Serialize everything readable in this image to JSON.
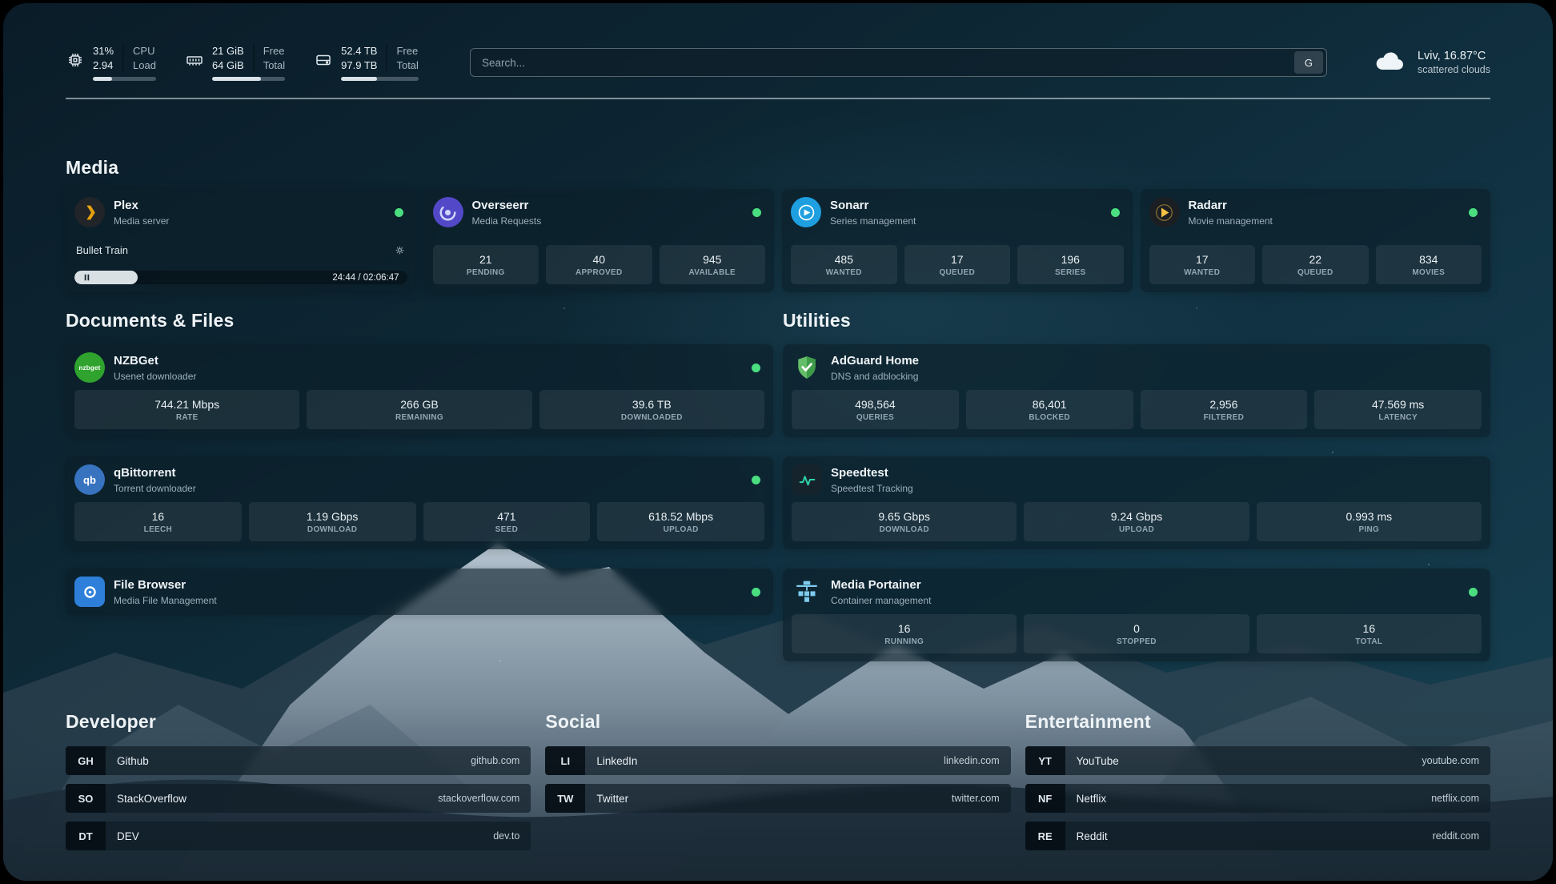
{
  "topbar": {
    "cpu": {
      "value_top": "31%",
      "value_bottom": "2.94",
      "label_top": "CPU",
      "label_bottom": "Load",
      "progress": 31
    },
    "ram": {
      "value_top": "21 GiB",
      "value_bottom": "64 GiB",
      "label_top": "Free",
      "label_bottom": "Total",
      "progress": 67
    },
    "disk": {
      "value_top": "52.4 TB",
      "value_bottom": "97.9 TB",
      "label_top": "Free",
      "label_bottom": "Total",
      "progress": 46
    },
    "search": {
      "placeholder": "Search...",
      "button": "G"
    },
    "weather": {
      "location_temp": "Lviv, 16.87°C",
      "condition": "scattered clouds"
    }
  },
  "media_section": {
    "title": "Media",
    "cards": [
      {
        "id": "plex",
        "name": "Plex",
        "description": "Media server",
        "icon": "plex-icon",
        "icon_shape": "circle",
        "icon_bg": "#212428",
        "icon_color": "#e5a00d",
        "status": "online",
        "player": {
          "title": "Bullet Train",
          "time": "24:44 / 02:06:47",
          "progress": 19
        }
      },
      {
        "id": "overseerr",
        "name": "Overseerr",
        "description": "Media Requests",
        "icon": "overseerr-icon",
        "icon_shape": "circle",
        "icon_bg": "#5348c7",
        "icon_color": "#cdd6ff",
        "status": "online",
        "stats": [
          {
            "value": "21",
            "label": "PENDING"
          },
          {
            "value": "40",
            "label": "APPROVED"
          },
          {
            "value": "945",
            "label": "AVAILABLE"
          }
        ]
      },
      {
        "id": "sonarr",
        "name": "Sonarr",
        "description": "Series management",
        "icon": "sonarr-icon",
        "icon_shape": "circle",
        "icon_bg": "#1e9fe0",
        "icon_color": "#ffffff",
        "status": "online",
        "stats": [
          {
            "value": "485",
            "label": "WANTED"
          },
          {
            "value": "17",
            "label": "QUEUED"
          },
          {
            "value": "196",
            "label": "SERIES"
          }
        ]
      },
      {
        "id": "radarr",
        "name": "Radarr",
        "description": "Movie management",
        "icon": "radarr-icon",
        "icon_shape": "circle",
        "icon_bg": "#1b1f23",
        "icon_color": "#f5c344",
        "status": "online",
        "stats": [
          {
            "value": "17",
            "label": "WANTED"
          },
          {
            "value": "22",
            "label": "QUEUED"
          },
          {
            "value": "834",
            "label": "MOVIES"
          }
        ]
      }
    ]
  },
  "documents_section": {
    "title": "Documents & Files",
    "cards": [
      {
        "id": "nzbget",
        "name": "NZBGet",
        "description": "Usenet downloader",
        "icon": "nzbget-icon",
        "icon_shape": "circle",
        "icon_bg": "#2fa32e",
        "icon_text": "nzbget",
        "status": "online",
        "stats": [
          {
            "value": "744.21 Mbps",
            "label": "RATE"
          },
          {
            "value": "266 GB",
            "label": "REMAINING"
          },
          {
            "value": "39.6 TB",
            "label": "DOWNLOADED"
          }
        ]
      },
      {
        "id": "qbittorrent",
        "name": "qBittorrent",
        "description": "Torrent downloader",
        "icon": "qbittorrent-icon",
        "icon_shape": "circle",
        "icon_bg": "#3873c0",
        "icon_text": "qb",
        "status": "online",
        "stats": [
          {
            "value": "16",
            "label": "LEECH"
          },
          {
            "value": "1.19 Gbps",
            "label": "DOWNLOAD"
          },
          {
            "value": "471",
            "label": "SEED"
          },
          {
            "value": "618.52 Mbps",
            "label": "UPLOAD"
          }
        ]
      },
      {
        "id": "filebrowser",
        "name": "File Browser",
        "description": "Media File Management",
        "icon": "filebrowser-icon",
        "icon_shape": "rounded",
        "icon_bg": "#2d7fd9",
        "icon_color": "#ffffff",
        "status": "online",
        "stats": []
      }
    ]
  },
  "utilities_section": {
    "title": "Utilities",
    "cards": [
      {
        "id": "adguard",
        "name": "AdGuard Home",
        "description": "DNS and adblocking",
        "icon": "adguard-icon",
        "icon_shape": "bare",
        "icon_color": "#64bd69",
        "stats": [
          {
            "value": "498,564",
            "label": "QUERIES"
          },
          {
            "value": "86,401",
            "label": "BLOCKED"
          },
          {
            "value": "2,956",
            "label": "FILTERED"
          },
          {
            "value": "47.569 ms",
            "label": "LATENCY"
          }
        ]
      },
      {
        "id": "speedtest",
        "name": "Speedtest",
        "description": "Speedtest Tracking",
        "icon": "speedtest-icon",
        "icon_shape": "rounded",
        "icon_bg": "#15232c",
        "icon_color": "#2dd4a7",
        "stats": [
          {
            "value": "9.65 Gbps",
            "label": "DOWNLOAD"
          },
          {
            "value": "9.24 Gbps",
            "label": "UPLOAD"
          },
          {
            "value": "0.993 ms",
            "label": "PING"
          }
        ]
      },
      {
        "id": "portainer",
        "name": "Media Portainer",
        "description": "Container management",
        "icon": "portainer-icon",
        "icon_shape": "bare",
        "icon_color": "#7fccef",
        "status": "online",
        "stats": [
          {
            "value": "16",
            "label": "RUNNING"
          },
          {
            "value": "0",
            "label": "STOPPED"
          },
          {
            "value": "16",
            "label": "TOTAL"
          }
        ]
      }
    ]
  },
  "bookmark_groups": [
    {
      "title": "Developer",
      "links": [
        {
          "abbr": "GH",
          "name": "Github",
          "url": "github.com"
        },
        {
          "abbr": "SO",
          "name": "StackOverflow",
          "url": "stackoverflow.com"
        },
        {
          "abbr": "DT",
          "name": "DEV",
          "url": "dev.to"
        }
      ]
    },
    {
      "title": "Social",
      "links": [
        {
          "abbr": "LI",
          "name": "LinkedIn",
          "url": "linkedin.com"
        },
        {
          "abbr": "TW",
          "name": "Twitter",
          "url": "twitter.com"
        }
      ]
    },
    {
      "title": "Entertainment",
      "links": [
        {
          "abbr": "YT",
          "name": "YouTube",
          "url": "youtube.com"
        },
        {
          "abbr": "NF",
          "name": "Netflix",
          "url": "netflix.com"
        },
        {
          "abbr": "RE",
          "name": "Reddit",
          "url": "reddit.com"
        }
      ]
    }
  ],
  "colors": {
    "status_online": "#4ade80",
    "plex_accent": "#e5a00d"
  }
}
